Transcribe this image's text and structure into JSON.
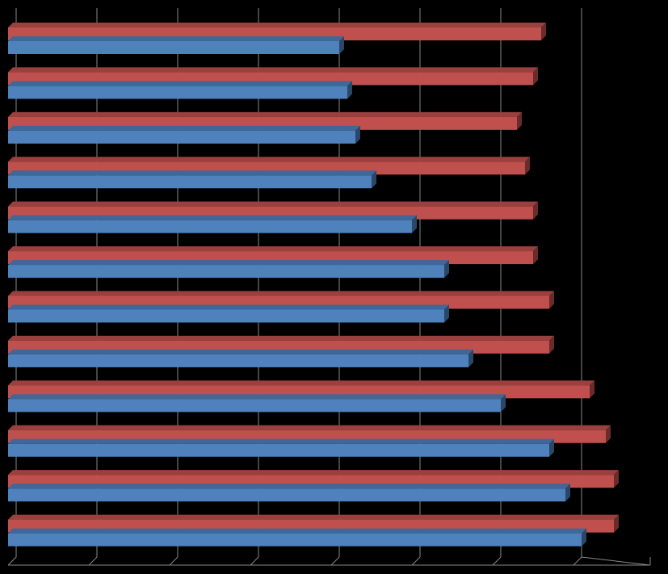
{
  "chart_data": {
    "type": "bar",
    "orientation": "horizontal",
    "categories": [
      null,
      null,
      null,
      null,
      null,
      null,
      null,
      null,
      null,
      null,
      null,
      null
    ],
    "series": [
      {
        "color": "#c0504d",
        "values": [
          6.6,
          6.5,
          6.3,
          6.4,
          6.5,
          6.5,
          6.7,
          6.7,
          7.2,
          7.4,
          7.5,
          7.5
        ]
      },
      {
        "color": "#4f81bd",
        "values": [
          4.1,
          4.2,
          4.3,
          4.5,
          5.0,
          5.4,
          5.4,
          5.7,
          6.1,
          6.7,
          6.9,
          7.1
        ]
      }
    ],
    "xlim": [
      0,
      8
    ],
    "xticks": [
      0,
      1,
      2,
      3,
      4,
      5,
      6,
      7
    ],
    "grid": true
  }
}
